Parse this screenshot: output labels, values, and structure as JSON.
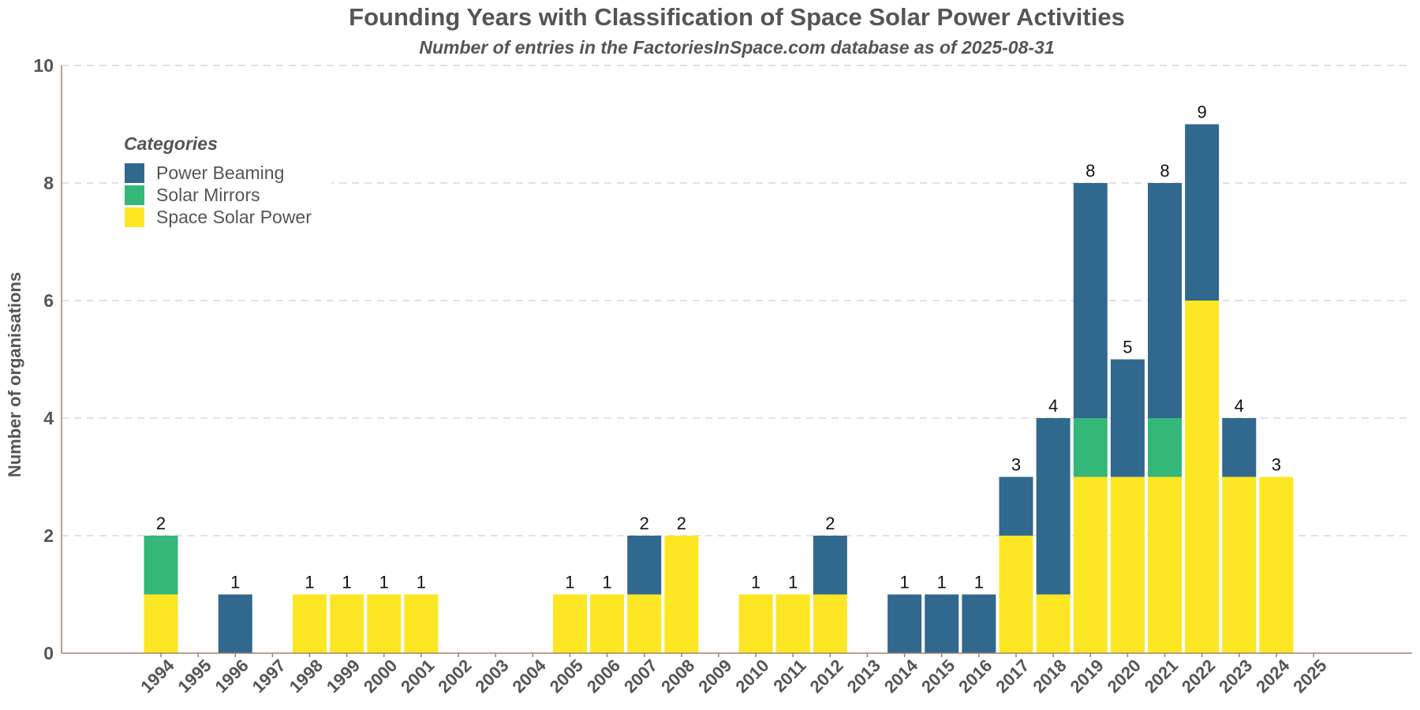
{
  "chart_data": {
    "type": "bar",
    "stacked": true,
    "title": "Founding Years with Classification of Space Solar Power Activities",
    "subtitle": "Number of entries in the FactoriesInSpace.com database as of 2025-08-31",
    "xlabel": "",
    "ylabel": "Number of organisations",
    "ylim": [
      0,
      10
    ],
    "yticks": [
      "0",
      "2",
      "4",
      "6",
      "8",
      "10"
    ],
    "grid": true,
    "legend_title": "Categories",
    "legend_position": "top-left",
    "categories": [
      "1994",
      "1995",
      "1996",
      "1997",
      "1998",
      "1999",
      "2000",
      "2001",
      "2002",
      "2003",
      "2004",
      "2005",
      "2006",
      "2007",
      "2008",
      "2009",
      "2010",
      "2011",
      "2012",
      "2013",
      "2014",
      "2015",
      "2016",
      "2017",
      "2018",
      "2019",
      "2020",
      "2021",
      "2022",
      "2023",
      "2024",
      "2025"
    ],
    "series": [
      {
        "name": "Space Solar Power",
        "color": "#fde725",
        "values": [
          1,
          0,
          0,
          0,
          1,
          1,
          1,
          1,
          0,
          0,
          0,
          1,
          1,
          1,
          2,
          0,
          1,
          1,
          1,
          0,
          0,
          0,
          0,
          2,
          1,
          3,
          3,
          3,
          6,
          3,
          3,
          0
        ]
      },
      {
        "name": "Solar Mirrors",
        "color": "#35b779",
        "values": [
          1,
          0,
          0,
          0,
          0,
          0,
          0,
          0,
          0,
          0,
          0,
          0,
          0,
          0,
          0,
          0,
          0,
          0,
          0,
          0,
          0,
          0,
          0,
          0,
          0,
          1,
          0,
          1,
          0,
          0,
          0,
          0
        ]
      },
      {
        "name": "Power Beaming",
        "color": "#31688e",
        "values": [
          0,
          0,
          1,
          0,
          0,
          0,
          0,
          0,
          0,
          0,
          0,
          0,
          0,
          1,
          0,
          0,
          0,
          0,
          1,
          0,
          1,
          1,
          1,
          1,
          3,
          4,
          2,
          4,
          3,
          1,
          0,
          0
        ]
      }
    ],
    "legend_order": [
      "Power Beaming",
      "Solar Mirrors",
      "Space Solar Power"
    ],
    "totals": [
      2,
      0,
      1,
      0,
      1,
      1,
      1,
      1,
      0,
      0,
      0,
      1,
      1,
      2,
      2,
      0,
      1,
      1,
      2,
      0,
      1,
      1,
      1,
      3,
      4,
      8,
      5,
      8,
      9,
      4,
      3,
      0
    ]
  }
}
